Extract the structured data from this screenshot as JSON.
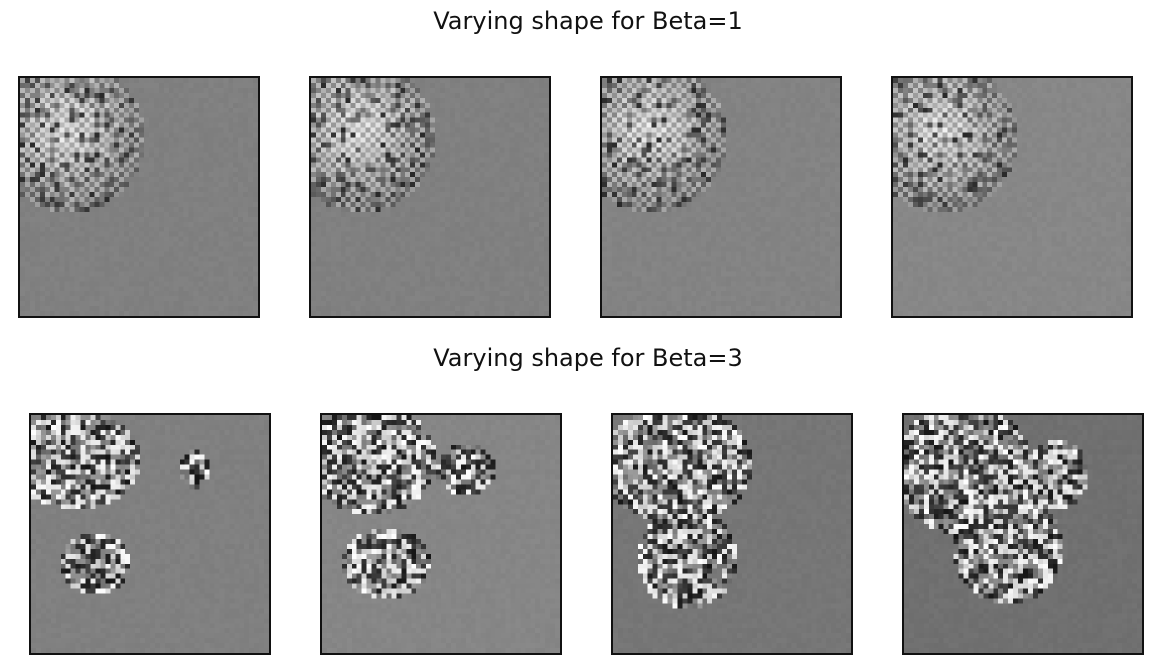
{
  "figure": {
    "rows": [
      {
        "title": "Varying shape for Beta=1",
        "panels": [
          {
            "shape": "blob1",
            "background": 128,
            "variant": 0
          },
          {
            "shape": "blob1",
            "background": 128,
            "variant": 1
          },
          {
            "shape": "blob1",
            "background": 131,
            "variant": 2
          },
          {
            "shape": "blob1",
            "background": 135,
            "variant": 3
          }
        ]
      },
      {
        "title": "Varying shape for Beta=3",
        "panels": [
          {
            "shape": "blob3a",
            "background": 128,
            "variant": 0
          },
          {
            "shape": "blob3b",
            "background": 134,
            "variant": 1
          },
          {
            "shape": "blob3c",
            "background": 118,
            "variant": 2
          },
          {
            "shape": "blob3d",
            "background": 112,
            "variant": 3
          }
        ]
      }
    ],
    "colormap": "gray",
    "axes_visible": false
  }
}
